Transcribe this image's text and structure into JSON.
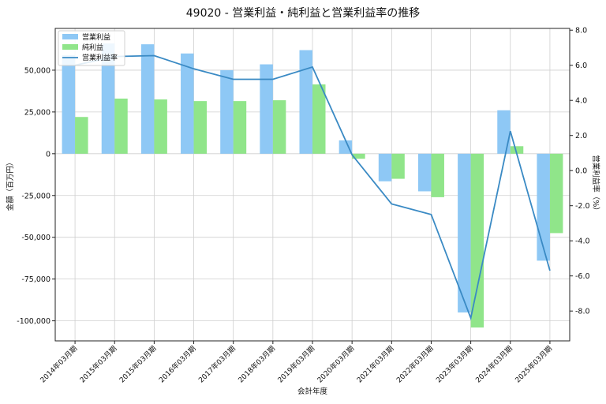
{
  "chart_data": {
    "type": "bar",
    "title": "49020 - 営業利益・純利益と営業利益率の推移",
    "xlabel": "会計年度",
    "ylabel": "金額（百万円）",
    "y2label": "営業利益率（%）",
    "categories": [
      "2014年03月期",
      "2015年03月期",
      "2015年03月期",
      "2016年03月期",
      "2017年03月期",
      "2018年03月期",
      "2019年03月期",
      "2020年03月期",
      "2021年03月期",
      "2022年03月期",
      "2023年03月期",
      "2024年03月期",
      "2025年03月期"
    ],
    "series": [
      {
        "name": "営業利益",
        "kind": "bar",
        "axis": "left",
        "color": "#8ec8f5",
        "values": [
          59000,
          66000,
          65500,
          60000,
          50000,
          53500,
          62000,
          8000,
          -16500,
          -22500,
          -95000,
          26000,
          -64000
        ]
      },
      {
        "name": "純利益",
        "kind": "bar",
        "axis": "left",
        "color": "#90e58a",
        "values": [
          22000,
          33000,
          32500,
          31500,
          31500,
          32000,
          41500,
          -3000,
          -15000,
          -26000,
          -104000,
          4500,
          -47500
        ]
      },
      {
        "name": "営業利益率",
        "kind": "line",
        "axis": "right",
        "color": "#3a8ac4",
        "values": [
          6.0,
          6.5,
          6.55,
          5.8,
          5.2,
          5.2,
          5.9,
          0.9,
          -1.9,
          -2.5,
          -8.4,
          2.25,
          -5.7
        ]
      }
    ],
    "ylim": [
      -112000,
      75000
    ],
    "yticks": [
      -100000,
      -75000,
      -50000,
      -25000,
      0,
      25000,
      50000
    ],
    "ytick_labels": [
      "-100,000",
      "-75,000",
      "-50,000",
      "-25,000",
      "0",
      "25,000",
      "50,000"
    ],
    "y2lim": [
      -9.7,
      8.1
    ],
    "y2ticks": [
      -8,
      -6,
      -4,
      -2,
      0,
      2,
      4,
      6,
      8
    ],
    "y2tick_labels": [
      "-8.0",
      "-6.0",
      "-4.0",
      "-2.0",
      "0.0",
      "2.0",
      "4.0",
      "6.0",
      "8.0"
    ],
    "grid": true,
    "legend_position": "top-left"
  }
}
